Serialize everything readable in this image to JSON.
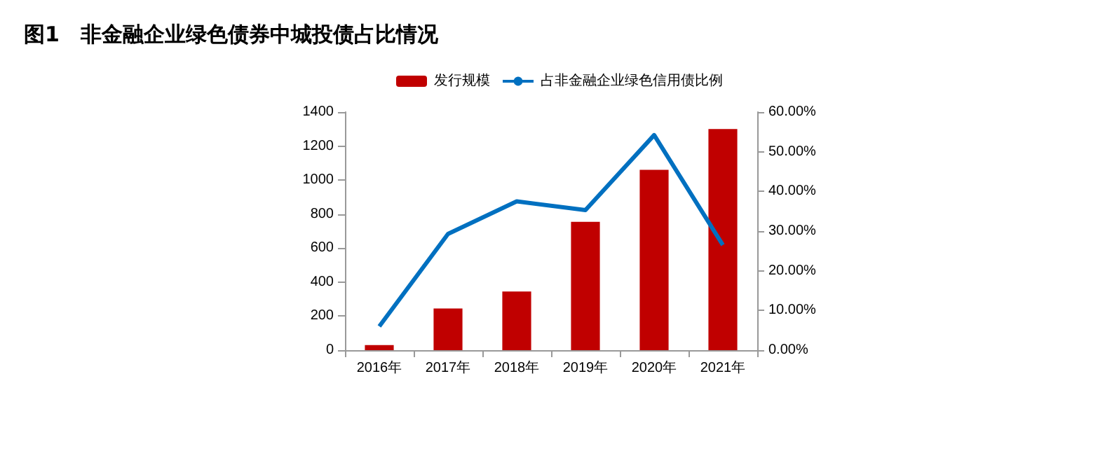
{
  "chart_data": {
    "type": "bar",
    "title": "图1　非金融企业绿色债券中城投债占比情况",
    "categories": [
      "2016年",
      "2017年",
      "2018年",
      "2019年",
      "2020年",
      "2021年"
    ],
    "series": [
      {
        "name": "发行规模",
        "color": "#c00000",
        "values": [
          30,
          245,
          345,
          755,
          1060,
          1300
        ]
      },
      {
        "name": "占非金融企业绿色信用债比例",
        "type": "line",
        "axis": "y2",
        "color": "#0070c0",
        "values": [
          6,
          29.3,
          37.5,
          35.3,
          54.2,
          26.5
        ]
      }
    ],
    "ylim": [
      0,
      1400
    ],
    "yticks": [
      0,
      200,
      400,
      600,
      800,
      1000,
      1200,
      1400
    ],
    "y2lim": [
      0,
      60
    ],
    "y2ticks": [
      {
        "value": 0,
        "label": "0.00%"
      },
      {
        "value": 10,
        "label": "10.00%"
      },
      {
        "value": 20,
        "label": "20.00%"
      },
      {
        "value": 30,
        "label": "30.00%"
      },
      {
        "value": 40,
        "label": "40.00%"
      },
      {
        "value": 50,
        "label": "50.00%"
      },
      {
        "value": 60,
        "label": "60.00%"
      }
    ],
    "grid": false,
    "legend": "top",
    "marker": "none",
    "line_style": "solid"
  }
}
